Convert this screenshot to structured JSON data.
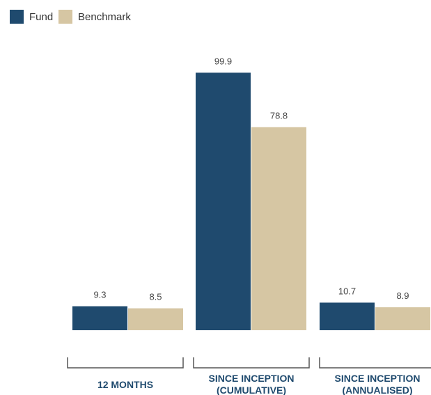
{
  "chart_data": {
    "type": "bar",
    "title": "",
    "xlabel": "",
    "ylabel": "",
    "categories": [
      [
        "12 MONTHS"
      ],
      [
        "SINCE INCEPTION",
        "(CUMULATIVE)"
      ],
      [
        "SINCE INCEPTION",
        "(ANNUALISED)"
      ]
    ],
    "series": [
      {
        "name": "Fund",
        "color": "#1f4a6e",
        "values": [
          9.3,
          99.9,
          10.7
        ],
        "labels": [
          "9.3",
          "99.9",
          "10.7"
        ]
      },
      {
        "name": "Benchmark",
        "color": "#d6c6a3",
        "values": [
          8.5,
          78.8,
          8.9
        ],
        "labels": [
          "8.5",
          "78.8",
          "8.9"
        ]
      }
    ],
    "ylim": [
      0,
      120
    ],
    "grid": false,
    "legend_position": "top-left",
    "category_label_color": "#1f4a6e",
    "bracket_color": "#555555"
  }
}
